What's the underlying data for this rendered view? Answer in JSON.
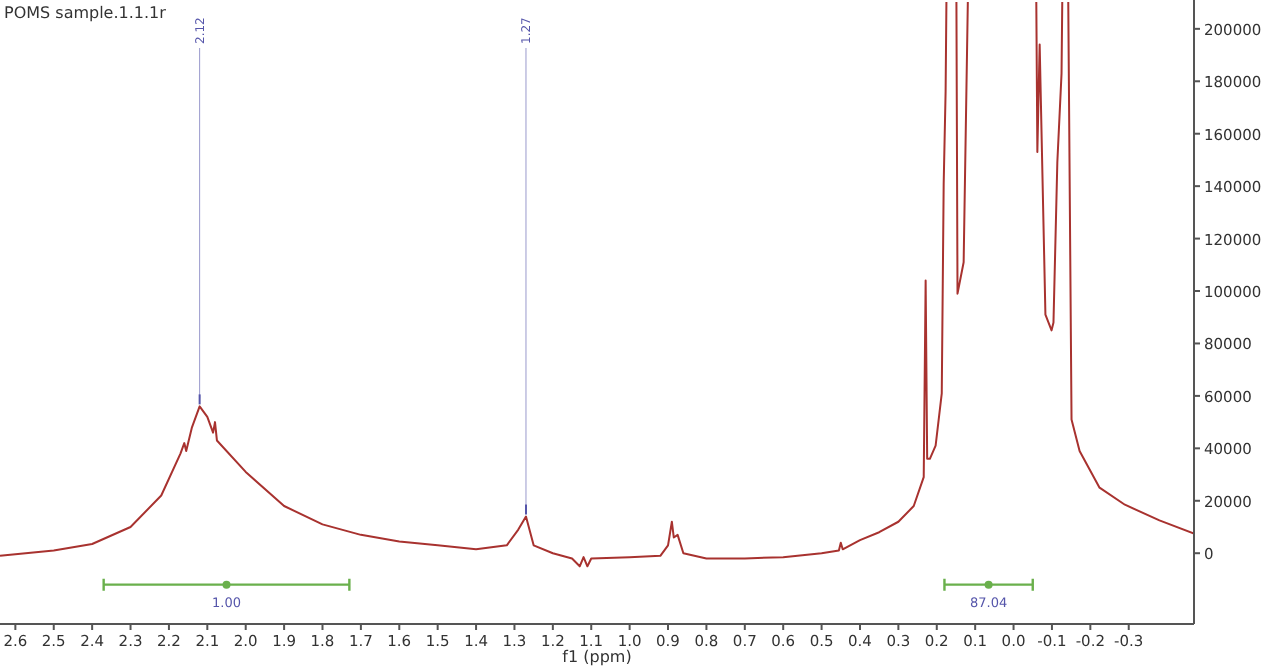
{
  "chart_data": {
    "type": "line",
    "title": "POMS sample.1.1.1r",
    "xlabel": "f1 (ppm)",
    "xlim": [
      2.64,
      -0.47
    ],
    "xticks": [
      2.6,
      2.5,
      2.4,
      2.3,
      2.2,
      2.1,
      {
        "value": 2,
        "label": "2.0"
      },
      1.9,
      1.8,
      1.7,
      1.6,
      1.5,
      1.4,
      1.3,
      1.2,
      1.1,
      {
        "value": 1,
        "label": "1.0"
      },
      0.9,
      0.8,
      0.7,
      0.6,
      0.5,
      0.4,
      0.3,
      0.2,
      0.1,
      {
        "value": 0,
        "label": "0.0"
      },
      -0.1,
      -0.2,
      -0.3
    ],
    "ylim": [
      -27000,
      211000
    ],
    "yticks": [
      0,
      20000,
      40000,
      60000,
      80000,
      100000,
      120000,
      140000,
      160000,
      180000,
      200000
    ],
    "grid": false,
    "marker": "none",
    "line_style": "solid",
    "annotations": [
      {
        "text": "2.12",
        "x": 2.12,
        "y": 56000
      },
      {
        "text": "1.27",
        "x": 1.27,
        "y": 14000
      },
      {
        "text": "1.00",
        "x": 2.05,
        "y": -12000
      },
      {
        "text": "87.04",
        "x": 0.065,
        "y": -12000
      }
    ],
    "series": [
      {
        "type": "scatter",
        "color": "#6ab04c",
        "x": [
          2.05,
          0.065
        ],
        "values": [
          -12000,
          -12000
        ],
        "xerrors": [
          0.32,
          0.115
        ],
        "marker": "circle"
      },
      {
        "color": "#a8322f",
        "x": [
          2.64,
          2.5,
          2.4,
          2.3,
          2.22,
          2.17,
          2.16,
          2.155,
          2.14,
          2.12,
          2.1,
          2.085,
          2.08,
          2.075,
          2.0,
          1.9,
          1.8,
          1.7,
          1.6,
          1.5,
          1.4,
          1.32,
          1.29,
          1.27,
          1.25,
          1.2,
          1.15,
          1.13,
          1.12,
          1.11,
          1.1,
          1.0,
          0.92,
          0.9,
          0.89,
          0.885,
          0.875,
          0.86,
          0.8,
          0.7,
          0.6,
          0.5,
          0.455,
          0.45,
          0.445,
          0.4,
          0.35,
          0.3,
          0.26,
          0.234,
          0.229,
          0.225,
          0.218,
          0.203,
          0.187,
          0.182,
          0.177,
          0.172,
          0.15,
          0.146,
          0.13,
          0.114,
          -0.057,
          -0.062,
          -0.068,
          -0.083,
          -0.099,
          -0.104,
          -0.114,
          -0.125,
          -0.13,
          -0.14,
          -0.151,
          -0.172,
          -0.224,
          -0.29,
          -0.38,
          -0.47
        ],
        "values": [
          -1000,
          1000,
          3500,
          10000,
          22000,
          38000,
          42000,
          39000,
          48000,
          56000,
          52000,
          46000,
          50000,
          43000,
          31000,
          18000,
          11000,
          7000,
          4500,
          3000,
          1500,
          3000,
          9000,
          14000,
          3000,
          0,
          -2000,
          -5000,
          -1500,
          -5000,
          -2000,
          -1500,
          -1000,
          3000,
          12000,
          6000,
          7000,
          0,
          -2000,
          -2000,
          -1500,
          0,
          1000,
          4000,
          1500,
          5000,
          8000,
          12000,
          18000,
          29000,
          104000,
          36000,
          36000,
          41000,
          61000,
          141000,
          176000,
          null,
          null,
          99000,
          111000,
          null,
          null,
          153000,
          194000,
          91000,
          85000,
          88000,
          149000,
          183000,
          null,
          null,
          51000,
          39000,
          25000,
          18500,
          12500,
          7500
        ]
      }
    ]
  }
}
